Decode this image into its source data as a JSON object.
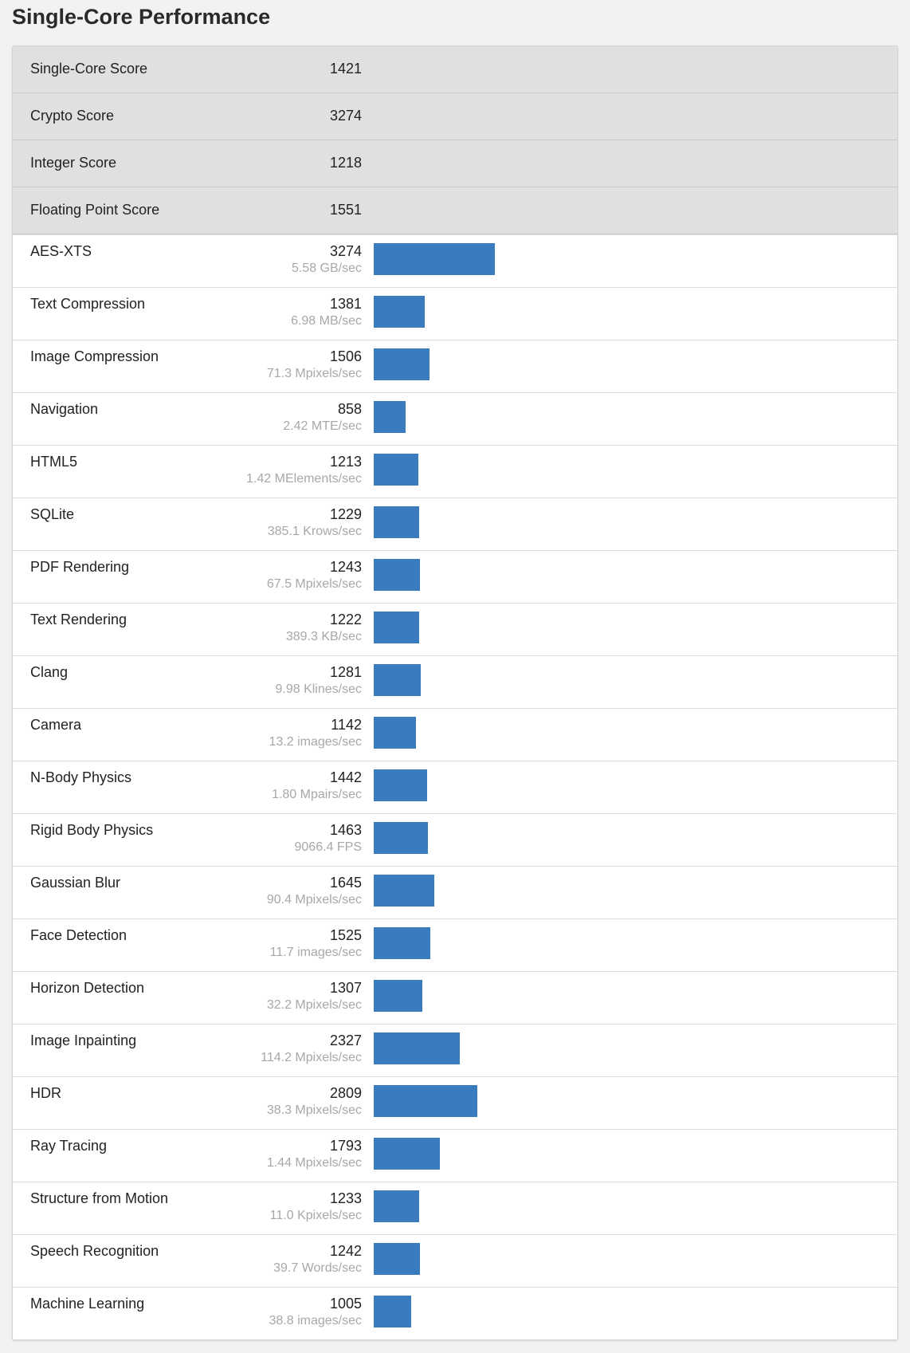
{
  "title": "Single-Core Performance",
  "bar_color": "#3a7bbf",
  "bar_max": 3274,
  "summary": [
    {
      "label": "Single-Core Score",
      "score": "1421"
    },
    {
      "label": "Crypto Score",
      "score": "3274"
    },
    {
      "label": "Integer Score",
      "score": "1218"
    },
    {
      "label": "Floating Point Score",
      "score": "1551"
    }
  ],
  "workloads": [
    {
      "label": "AES-XTS",
      "score": "3274",
      "rate": "5.58 GB/sec"
    },
    {
      "label": "Text Compression",
      "score": "1381",
      "rate": "6.98 MB/sec"
    },
    {
      "label": "Image Compression",
      "score": "1506",
      "rate": "71.3 Mpixels/sec"
    },
    {
      "label": "Navigation",
      "score": "858",
      "rate": "2.42 MTE/sec"
    },
    {
      "label": "HTML5",
      "score": "1213",
      "rate": "1.42 MElements/sec"
    },
    {
      "label": "SQLite",
      "score": "1229",
      "rate": "385.1 Krows/sec"
    },
    {
      "label": "PDF Rendering",
      "score": "1243",
      "rate": "67.5 Mpixels/sec"
    },
    {
      "label": "Text Rendering",
      "score": "1222",
      "rate": "389.3 KB/sec"
    },
    {
      "label": "Clang",
      "score": "1281",
      "rate": "9.98 Klines/sec"
    },
    {
      "label": "Camera",
      "score": "1142",
      "rate": "13.2 images/sec"
    },
    {
      "label": "N-Body Physics",
      "score": "1442",
      "rate": "1.80 Mpairs/sec"
    },
    {
      "label": "Rigid Body Physics",
      "score": "1463",
      "rate": "9066.4 FPS"
    },
    {
      "label": "Gaussian Blur",
      "score": "1645",
      "rate": "90.4 Mpixels/sec"
    },
    {
      "label": "Face Detection",
      "score": "1525",
      "rate": "11.7 images/sec"
    },
    {
      "label": "Horizon Detection",
      "score": "1307",
      "rate": "32.2 Mpixels/sec"
    },
    {
      "label": "Image Inpainting",
      "score": "2327",
      "rate": "114.2 Mpixels/sec"
    },
    {
      "label": "HDR",
      "score": "2809",
      "rate": "38.3 Mpixels/sec"
    },
    {
      "label": "Ray Tracing",
      "score": "1793",
      "rate": "1.44 Mpixels/sec"
    },
    {
      "label": "Structure from Motion",
      "score": "1233",
      "rate": "11.0 Kpixels/sec"
    },
    {
      "label": "Speech Recognition",
      "score": "1242",
      "rate": "39.7 Words/sec"
    },
    {
      "label": "Machine Learning",
      "score": "1005",
      "rate": "38.8 images/sec"
    }
  ]
}
